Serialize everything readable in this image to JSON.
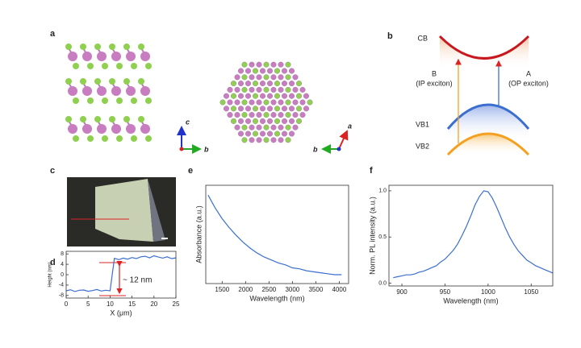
{
  "panel_labels": [
    "a",
    "b",
    "c",
    "d",
    "e",
    "f"
  ],
  "structure": {
    "axes_left": [
      "c",
      "b"
    ],
    "axes_right": [
      "a",
      "b"
    ]
  },
  "band_diagram": {
    "levels": [
      "CB",
      "VB1",
      "VB2"
    ],
    "transitions": [
      {
        "label": "B",
        "sublabel": "(IP exciton)"
      },
      {
        "label": "A",
        "sublabel": "(OP exciton)"
      }
    ]
  },
  "chart_data": [
    {
      "type": "line",
      "xlabel": "X (μm)",
      "ylabel": "Height (nm)",
      "annotation": "~ 12 nm",
      "color": "#3b6fcf",
      "x": [
        0,
        1,
        2,
        3,
        4,
        5,
        6,
        7,
        8,
        9,
        10,
        11,
        12,
        13,
        14,
        15,
        16,
        17,
        18,
        19,
        20,
        21,
        22,
        23,
        24,
        25
      ],
      "values": [
        -6.2,
        -5.8,
        -6.5,
        -6.0,
        -5.9,
        -6.4,
        -6.1,
        -5.7,
        -6.3,
        -6.0,
        -6.2,
        6.3,
        5.8,
        6.4,
        6.0,
        6.6,
        6.2,
        6.9,
        7.1,
        6.5,
        7.3,
        6.8,
        6.4,
        6.9,
        6.2,
        6.5
      ],
      "xlim": [
        0,
        25
      ],
      "ylim": [
        -9,
        9
      ],
      "xticks": [
        0,
        5,
        10,
        15,
        20,
        25
      ],
      "yticks": [
        -8,
        -4,
        0,
        4,
        8
      ]
    },
    {
      "type": "line",
      "xlabel": "Wavelength (nm)",
      "ylabel": "Absorbance (a.u.)",
      "color": "#3b6fcf",
      "x": [
        1200,
        1350,
        1500,
        1650,
        1800,
        1950,
        2100,
        2250,
        2400,
        2550,
        2700,
        2850,
        3000,
        3150,
        3300,
        3450,
        3600,
        3750,
        3900,
        4050
      ],
      "values": [
        0.9,
        0.77,
        0.66,
        0.57,
        0.49,
        0.42,
        0.36,
        0.31,
        0.27,
        0.24,
        0.21,
        0.19,
        0.16,
        0.15,
        0.13,
        0.12,
        0.11,
        0.1,
        0.09,
        0.09
      ],
      "xlim": [
        1150,
        4200
      ],
      "ylim": [
        0,
        1
      ],
      "xticks": [
        1500,
        2000,
        2500,
        3000,
        3500,
        4000
      ]
    },
    {
      "type": "line",
      "xlabel": "Wavelength (nm)",
      "ylabel": "Norm. PL intensity (a.u.)",
      "color": "#3b6fcf",
      "x": [
        890,
        895,
        900,
        905,
        910,
        915,
        920,
        925,
        930,
        935,
        940,
        945,
        950,
        955,
        960,
        965,
        970,
        975,
        980,
        985,
        990,
        995,
        1000,
        1005,
        1010,
        1015,
        1020,
        1025,
        1030,
        1035,
        1040,
        1045,
        1050,
        1055,
        1060,
        1065,
        1070,
        1075
      ],
      "values": [
        0.06,
        0.07,
        0.08,
        0.09,
        0.09,
        0.1,
        0.12,
        0.13,
        0.15,
        0.17,
        0.19,
        0.23,
        0.26,
        0.31,
        0.36,
        0.43,
        0.52,
        0.62,
        0.73,
        0.85,
        0.94,
        1.0,
        0.99,
        0.92,
        0.82,
        0.71,
        0.6,
        0.5,
        0.42,
        0.35,
        0.3,
        0.25,
        0.22,
        0.19,
        0.17,
        0.15,
        0.13,
        0.11
      ],
      "xlim": [
        885,
        1075
      ],
      "ylim": [
        -0.03,
        1.06
      ],
      "xticks": [
        900,
        950,
        1000,
        1050
      ],
      "yticks": [
        {
          "value": 0,
          "label": "0.0"
        },
        {
          "value": 0.5,
          "label": "0.5"
        },
        {
          "value": 1,
          "label": "1.0"
        }
      ]
    }
  ]
}
